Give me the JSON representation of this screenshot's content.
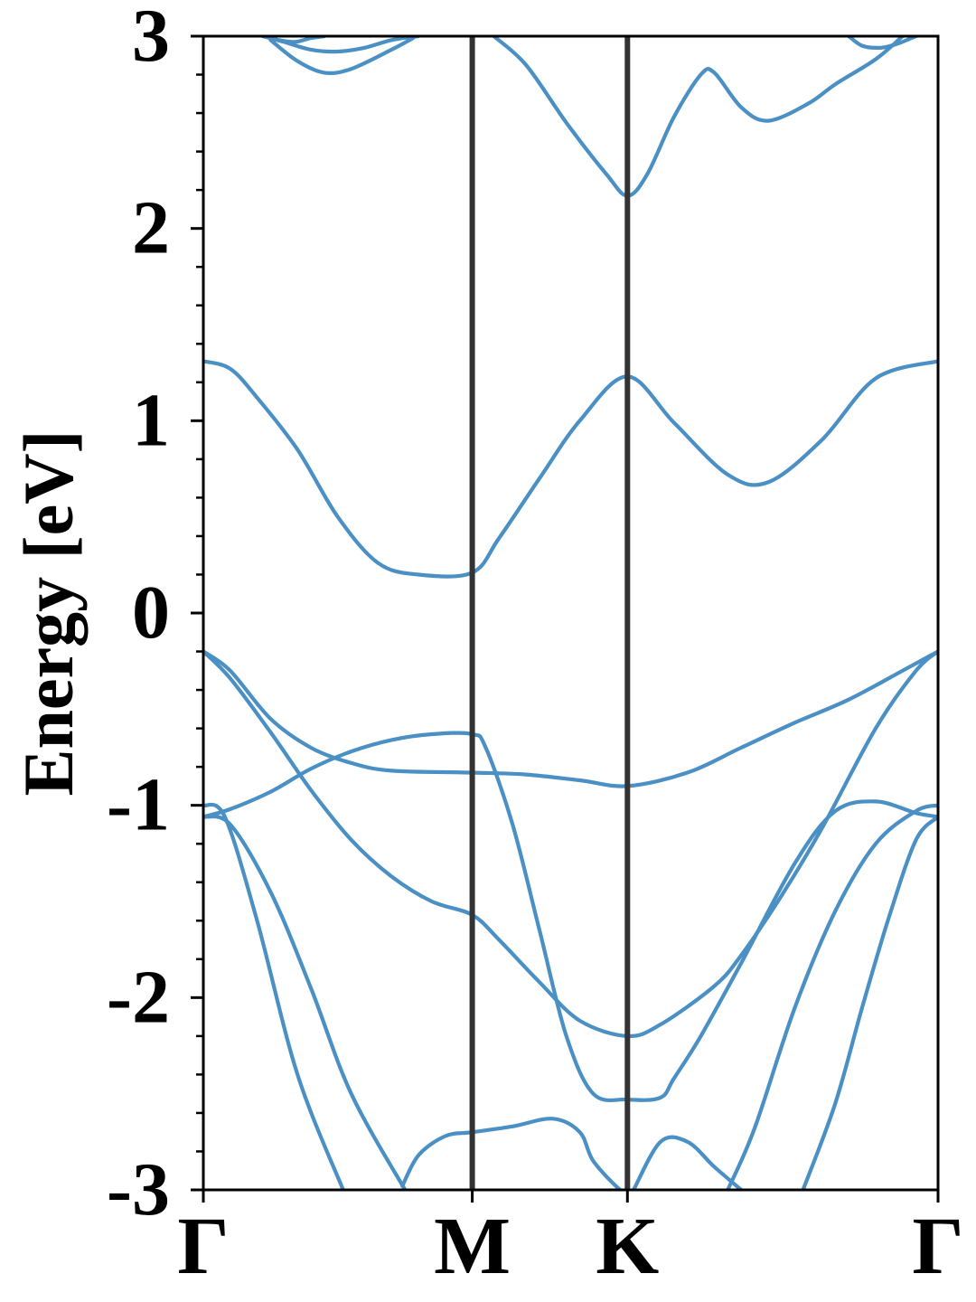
{
  "chart_data": {
    "type": "line",
    "title": "",
    "xlabel": "",
    "ylabel": "Energy [eV]",
    "ylim": [
      -3,
      3
    ],
    "xlim": [
      0,
      2.732
    ],
    "yticks": [
      -3,
      -2,
      -1,
      0,
      1,
      2,
      3
    ],
    "ytick_labels": [
      "-3",
      "-2",
      "-1",
      "0",
      "1",
      "2",
      "3"
    ],
    "kpath": [
      {
        "label": "Γ",
        "x": 0
      },
      {
        "label": "M",
        "x": 1.0
      },
      {
        "label": "K",
        "x": 1.577
      },
      {
        "label": "Γ",
        "x": 2.732
      }
    ],
    "divider_lines_at": [
      1.0,
      1.577
    ],
    "line_color": "#4a90c4",
    "divider_color": "#333333",
    "grid": false,
    "legend": "none",
    "series": [
      {
        "x": [
          0,
          0.1,
          0.2,
          0.35,
          0.5,
          0.65,
          0.8,
          1.0,
          1.1,
          1.25,
          1.4,
          1.577,
          1.75,
          1.95,
          2.1,
          2.3,
          2.5,
          2.732
        ],
        "y": [
          1.31,
          1.27,
          1.12,
          0.85,
          0.5,
          0.26,
          0.2,
          0.21,
          0.39,
          0.7,
          1.0,
          1.23,
          0.99,
          0.72,
          0.68,
          0.9,
          1.22,
          1.31
        ]
      },
      {
        "x": [
          0,
          0.1,
          0.25,
          0.4,
          0.55,
          0.7,
          1.0,
          1.2,
          1.4,
          1.577,
          1.8,
          2.0,
          2.2,
          2.4,
          2.6,
          2.732
        ],
        "y": [
          -0.2,
          -0.3,
          -0.55,
          -0.7,
          -0.78,
          -0.82,
          -0.83,
          -0.84,
          -0.87,
          -0.9,
          -0.83,
          -0.7,
          -0.57,
          -0.45,
          -0.3,
          -0.2
        ]
      },
      {
        "x": [
          0,
          0.1,
          0.25,
          0.4,
          0.55,
          0.7,
          0.85,
          1.0,
          1.1,
          1.25,
          1.4,
          1.577,
          1.7,
          1.9,
          2.0,
          2.15,
          2.3,
          2.5,
          2.65,
          2.732
        ],
        "y": [
          -0.2,
          -0.34,
          -0.62,
          -0.92,
          -1.18,
          -1.37,
          -1.5,
          -1.57,
          -1.7,
          -1.92,
          -2.12,
          -2.2,
          -2.14,
          -1.94,
          -1.78,
          -1.47,
          -1.12,
          -0.6,
          -0.3,
          -0.2
        ]
      },
      {
        "x": [
          0,
          0.1,
          0.25,
          0.4,
          0.55,
          0.7,
          0.85,
          1.0,
          1.05,
          1.15,
          1.25,
          1.35,
          1.45,
          1.577,
          1.7,
          1.75,
          1.85,
          2.0,
          2.2,
          2.35,
          2.5,
          2.65,
          2.732
        ],
        "y": [
          -1.06,
          -1.02,
          -0.93,
          -0.81,
          -0.72,
          -0.66,
          -0.63,
          -0.63,
          -0.7,
          -1.1,
          -1.65,
          -2.2,
          -2.5,
          -2.53,
          -2.52,
          -2.42,
          -2.2,
          -1.82,
          -1.3,
          -1.03,
          -0.98,
          -1.04,
          -1.06
        ]
      },
      {
        "x": [
          0,
          0.08,
          0.2,
          0.35,
          0.52
        ],
        "y": [
          -1.0,
          -1.06,
          -1.6,
          -2.4,
          -3.0
        ]
      },
      {
        "x": [
          0,
          0.1,
          0.25,
          0.4,
          0.55,
          0.75
        ],
        "y": [
          -1.06,
          -1.1,
          -1.45,
          -1.95,
          -2.5,
          -3.0
        ]
      },
      {
        "x": [
          0.74,
          0.8,
          0.9,
          1.0,
          1.15,
          1.3,
          1.4,
          1.45,
          1.55,
          1.577
        ],
        "y": [
          -2.98,
          -2.82,
          -2.72,
          -2.7,
          -2.67,
          -2.63,
          -2.7,
          -2.85,
          -3.0,
          -3.0
        ]
      },
      {
        "x": [
          1.6,
          1.7,
          1.8,
          1.9,
          2.0
        ],
        "y": [
          -3.0,
          -2.75,
          -2.75,
          -2.88,
          -3.0
        ]
      },
      {
        "x": [
          1.95,
          2.05,
          2.2,
          2.35,
          2.5,
          2.65,
          2.732
        ],
        "y": [
          -3.0,
          -2.68,
          -2.05,
          -1.55,
          -1.2,
          -1.03,
          -1.0
        ]
      },
      {
        "x": [
          2.23,
          2.35,
          2.45,
          2.55,
          2.65,
          2.732
        ],
        "y": [
          -3.0,
          -2.55,
          -2.05,
          -1.58,
          -1.18,
          -1.06
        ]
      },
      {
        "x": [
          0.25,
          0.35,
          0.45,
          0.55,
          0.7,
          0.78
        ],
        "y": [
          2.98,
          2.87,
          2.81,
          2.83,
          2.93,
          2.99
        ]
      },
      {
        "x": [
          0.22,
          0.3,
          0.4,
          0.5,
          0.6,
          0.7,
          0.8
        ],
        "y": [
          3.0,
          2.97,
          2.93,
          2.92,
          2.94,
          2.98,
          3.0
        ]
      },
      {
        "x": [
          0.24,
          0.28,
          0.34,
          0.4,
          0.45
        ],
        "y": [
          3.0,
          2.98,
          2.97,
          2.99,
          3.0
        ]
      },
      {
        "x": [
          1.08,
          1.2,
          1.35,
          1.5,
          1.577,
          1.65,
          1.75,
          1.85,
          1.9,
          2.0,
          2.1,
          2.25,
          2.35,
          2.5,
          2.6
        ],
        "y": [
          3.0,
          2.85,
          2.55,
          2.28,
          2.17,
          2.28,
          2.58,
          2.8,
          2.81,
          2.63,
          2.56,
          2.65,
          2.75,
          2.88,
          3.0
        ]
      },
      {
        "x": [
          2.4,
          2.45,
          2.52,
          2.58,
          2.65
        ],
        "y": [
          3.0,
          2.95,
          2.94,
          2.96,
          3.0
        ]
      }
    ]
  }
}
